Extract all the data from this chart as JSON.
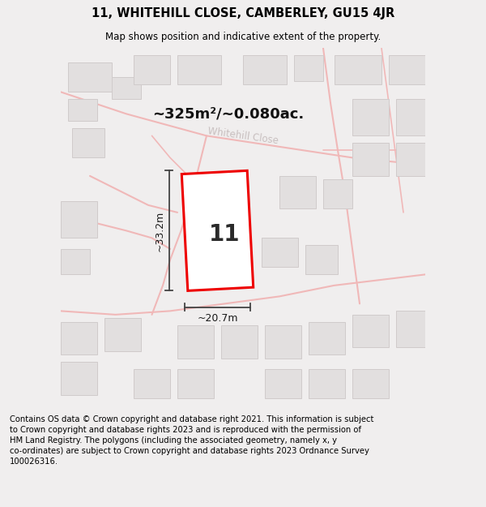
{
  "title": "11, WHITEHILL CLOSE, CAMBERLEY, GU15 4JR",
  "subtitle": "Map shows position and indicative extent of the property.",
  "area_text": "~325m²/~0.080ac.",
  "label_number": "11",
  "dim_height": "~33.2m",
  "dim_width": "~20.7m",
  "street_label": "Whitehill Close",
  "footer_text": "Contains OS data © Crown copyright and database right 2021. This information is subject\nto Crown copyright and database rights 2023 and is reproduced with the permission of\nHM Land Registry. The polygons (including the associated geometry, namely x, y\nco-ordinates) are subject to Crown copyright and database rights 2023 Ordnance Survey\n100026316.",
  "bg_color": "#f0eeee",
  "map_bg_color": "#f5f4f4",
  "road_color": "#f0b8b8",
  "building_color": "#e2dfdf",
  "building_edge_color": "#d0cbcb",
  "plot_color": "#ee0000",
  "plot_fill_color": "#ffffff",
  "dim_line_color": "#444444",
  "title_fontsize": 10.5,
  "subtitle_fontsize": 8.5,
  "area_fontsize": 13,
  "number_fontsize": 20,
  "dim_fontsize": 9,
  "street_label_color": "#c8bfbf",
  "footer_fontsize": 7.2
}
